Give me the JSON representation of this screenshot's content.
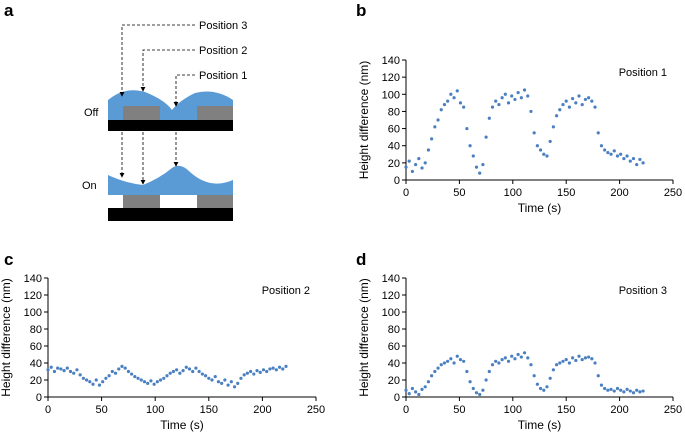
{
  "panel_labels": [
    "a",
    "b",
    "c",
    "d"
  ],
  "diagram": {
    "positions": [
      "Position 3",
      "Position 2",
      "Position 1"
    ],
    "states": [
      "Off",
      "On"
    ]
  },
  "chart_data": [
    {
      "type": "scatter",
      "annotation": "Position 1",
      "xlabel": "Time (s)",
      "ylabel": "Height difference (nm)",
      "color": "#4a7fc1",
      "xlim": [
        0,
        250
      ],
      "ylim": [
        0,
        140
      ],
      "xticks": [
        0,
        50,
        100,
        150,
        200,
        250
      ],
      "yticks": [
        0,
        20,
        40,
        60,
        80,
        100,
        120,
        140
      ],
      "x": [
        0,
        3,
        6,
        9,
        12,
        15,
        18,
        21,
        24,
        27,
        30,
        33,
        36,
        39,
        42,
        45,
        48,
        51,
        54,
        57,
        60,
        63,
        66,
        69,
        72,
        75,
        78,
        81,
        84,
        87,
        90,
        93,
        96,
        99,
        102,
        105,
        108,
        111,
        114,
        117,
        120,
        123,
        126,
        129,
        132,
        135,
        138,
        141,
        144,
        147,
        150,
        153,
        156,
        159,
        162,
        165,
        168,
        171,
        174,
        177,
        180,
        183,
        186,
        189,
        192,
        195,
        198,
        201,
        204,
        207,
        210,
        213,
        216,
        219,
        222
      ],
      "values": [
        15,
        22,
        10,
        18,
        25,
        14,
        20,
        35,
        48,
        62,
        70,
        82,
        88,
        92,
        100,
        96,
        104,
        90,
        85,
        60,
        40,
        28,
        15,
        8,
        18,
        50,
        72,
        85,
        92,
        88,
        96,
        100,
        90,
        98,
        94,
        102,
        96,
        105,
        98,
        80,
        55,
        40,
        35,
        30,
        28,
        45,
        62,
        75,
        82,
        88,
        92,
        85,
        95,
        90,
        98,
        88,
        94,
        96,
        92,
        85,
        55,
        40,
        35,
        32,
        30,
        34,
        28,
        30,
        25,
        28,
        22,
        25,
        18,
        24,
        20
      ]
    },
    {
      "type": "scatter",
      "annotation": "Position 2",
      "xlabel": "Time (s)",
      "ylabel": "Height difference (nm)",
      "color": "#4a7fc1",
      "xlim": [
        0,
        250
      ],
      "ylim": [
        0,
        140
      ],
      "xticks": [
        0,
        50,
        100,
        150,
        200,
        250
      ],
      "yticks": [
        0,
        20,
        40,
        60,
        80,
        100,
        120,
        140
      ],
      "x": [
        0,
        3,
        6,
        9,
        12,
        15,
        18,
        21,
        24,
        27,
        30,
        33,
        36,
        39,
        42,
        45,
        48,
        51,
        54,
        57,
        60,
        63,
        66,
        69,
        72,
        75,
        78,
        81,
        84,
        87,
        90,
        93,
        96,
        99,
        102,
        105,
        108,
        111,
        114,
        117,
        120,
        123,
        126,
        129,
        132,
        135,
        138,
        141,
        144,
        147,
        150,
        153,
        156,
        159,
        162,
        165,
        168,
        171,
        174,
        177,
        180,
        183,
        186,
        189,
        192,
        195,
        198,
        201,
        204,
        207,
        210,
        213,
        216,
        219,
        222
      ],
      "values": [
        32,
        35,
        30,
        34,
        33,
        31,
        34,
        30,
        28,
        32,
        26,
        22,
        20,
        18,
        15,
        20,
        14,
        18,
        22,
        25,
        30,
        28,
        33,
        36,
        34,
        30,
        27,
        24,
        22,
        20,
        18,
        16,
        19,
        15,
        18,
        20,
        22,
        25,
        28,
        30,
        32,
        28,
        31,
        35,
        33,
        30,
        34,
        30,
        27,
        25,
        22,
        20,
        24,
        18,
        16,
        20,
        14,
        18,
        12,
        16,
        22,
        26,
        28,
        30,
        27,
        31,
        29,
        32,
        30,
        33,
        34,
        32,
        35,
        33,
        36
      ]
    },
    {
      "type": "scatter",
      "annotation": "Position 3",
      "xlabel": "Time (s)",
      "ylabel": "Height difference (nm)",
      "color": "#4a7fc1",
      "xlim": [
        0,
        250
      ],
      "ylim": [
        0,
        140
      ],
      "xticks": [
        0,
        50,
        100,
        150,
        200,
        250
      ],
      "yticks": [
        0,
        20,
        40,
        60,
        80,
        100,
        120,
        140
      ],
      "x": [
        0,
        3,
        6,
        9,
        12,
        15,
        18,
        21,
        24,
        27,
        30,
        33,
        36,
        39,
        42,
        45,
        48,
        51,
        54,
        57,
        60,
        63,
        66,
        69,
        72,
        75,
        78,
        81,
        84,
        87,
        90,
        93,
        96,
        99,
        102,
        105,
        108,
        111,
        114,
        117,
        120,
        123,
        126,
        129,
        132,
        135,
        138,
        141,
        144,
        147,
        150,
        153,
        156,
        159,
        162,
        165,
        168,
        171,
        174,
        177,
        180,
        183,
        186,
        189,
        192,
        195,
        198,
        201,
        204,
        207,
        210,
        213,
        216,
        219,
        222
      ],
      "values": [
        8,
        4,
        10,
        6,
        3,
        9,
        12,
        18,
        25,
        30,
        34,
        38,
        40,
        42,
        45,
        40,
        48,
        44,
        42,
        30,
        18,
        10,
        5,
        3,
        8,
        20,
        30,
        38,
        42,
        40,
        44,
        46,
        42,
        48,
        45,
        50,
        47,
        52,
        46,
        38,
        25,
        15,
        10,
        8,
        12,
        22,
        32,
        38,
        40,
        42,
        44,
        40,
        46,
        43,
        48,
        44,
        46,
        47,
        45,
        40,
        25,
        14,
        10,
        8,
        9,
        7,
        10,
        8,
        6,
        9,
        7,
        5,
        8,
        6,
        7
      ]
    }
  ]
}
